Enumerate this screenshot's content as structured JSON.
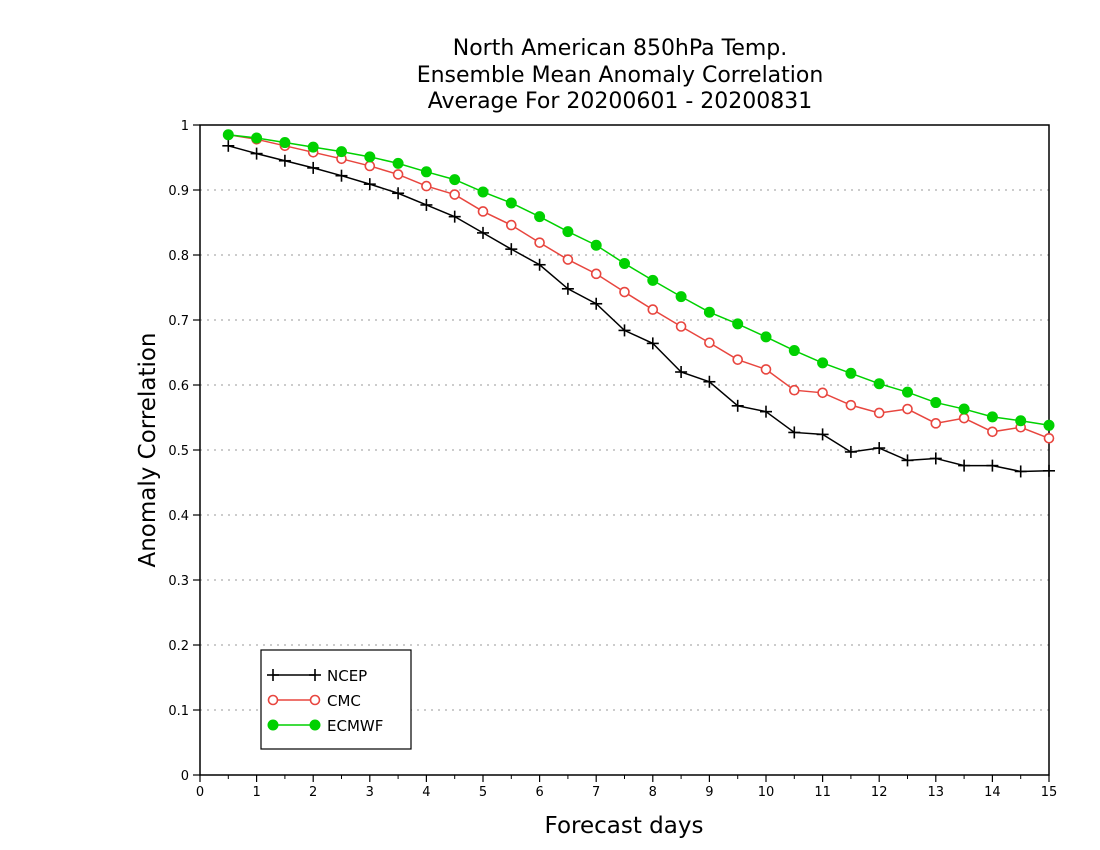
{
  "chart_data": {
    "type": "line",
    "title": [
      "North American 850hPa Temp.",
      "Ensemble Mean Anomaly Correlation",
      "Average For 20200601 - 20200831"
    ],
    "xlabel": "Forecast days",
    "ylabel": "Anomaly Correlation",
    "xlim": [
      0,
      15
    ],
    "ylim": [
      0,
      1
    ],
    "x_ticks": [
      "0",
      "1",
      "2",
      "3",
      "4",
      "5",
      "6",
      "7",
      "8",
      "9",
      "10",
      "11",
      "12",
      "13",
      "14",
      "15"
    ],
    "y_ticks": [
      "0",
      "0.1",
      "0.2",
      "0.3",
      "0.4",
      "0.5",
      "0.6",
      "0.7",
      "0.8",
      "0.9",
      "1"
    ],
    "grid": "horizontal dotted",
    "legend_position": "bottom-left",
    "x": [
      0.5,
      1,
      1.5,
      2,
      2.5,
      3,
      3.5,
      4,
      4.5,
      5,
      5.5,
      6,
      6.5,
      7,
      7.5,
      8,
      8.5,
      9,
      9.5,
      10,
      10.5,
      11,
      11.5,
      12,
      12.5,
      13,
      13.5,
      14,
      14.5,
      15
    ],
    "series": [
      {
        "name": "NCEP",
        "color": "#000000",
        "marker": "plus",
        "values": [
          0.968,
          0.956,
          0.945,
          0.934,
          0.922,
          0.909,
          0.895,
          0.877,
          0.859,
          0.834,
          0.809,
          0.785,
          0.748,
          0.725,
          0.684,
          0.664,
          0.62,
          0.605,
          0.568,
          0.559,
          0.527,
          0.524,
          0.497,
          0.503,
          0.484,
          0.487,
          0.476,
          0.476,
          0.467,
          0.468
        ]
      },
      {
        "name": "CMC",
        "color": "#e8463f",
        "marker": "open-circle",
        "values": [
          0.985,
          0.978,
          0.968,
          0.958,
          0.948,
          0.937,
          0.924,
          0.906,
          0.893,
          0.867,
          0.846,
          0.819,
          0.793,
          0.771,
          0.743,
          0.716,
          0.69,
          0.665,
          0.639,
          0.624,
          0.592,
          0.588,
          0.569,
          0.557,
          0.563,
          0.541,
          0.549,
          0.528,
          0.535,
          0.518
        ]
      },
      {
        "name": "ECMWF",
        "color": "#00d100",
        "marker": "filled-circle",
        "values": [
          0.985,
          0.98,
          0.973,
          0.966,
          0.959,
          0.951,
          0.941,
          0.928,
          0.916,
          0.897,
          0.88,
          0.859,
          0.836,
          0.815,
          0.787,
          0.761,
          0.736,
          0.712,
          0.694,
          0.674,
          0.653,
          0.634,
          0.618,
          0.602,
          0.589,
          0.573,
          0.563,
          0.551,
          0.545,
          0.538
        ]
      }
    ]
  }
}
